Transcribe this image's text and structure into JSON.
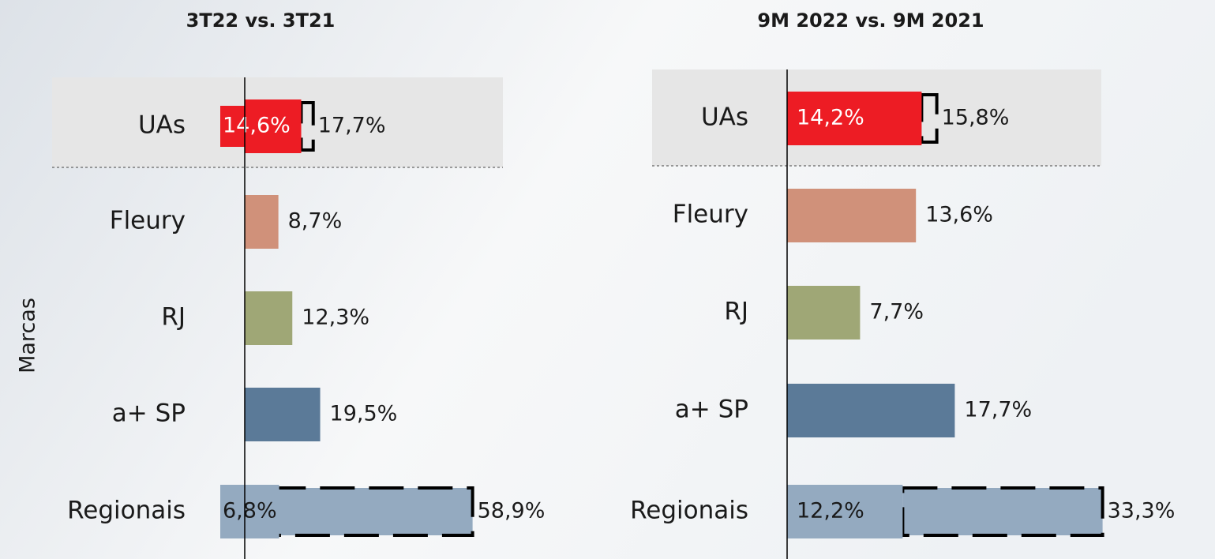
{
  "chart_data": [
    {
      "type": "bar",
      "title": "3T22 vs. 3T21",
      "ylabel": "Marcas",
      "categories": [
        "UAs",
        "Fleury",
        "RJ",
        "a+ SP",
        "Regionais"
      ],
      "colors": [
        "#ed1c24",
        "#d0917a",
        "#9fa776",
        "#5b7a98",
        "#94aac0"
      ],
      "values": [
        14.6,
        8.7,
        12.3,
        19.5,
        6.8
      ],
      "value_labels": [
        "14,6%",
        "8,7%",
        "12,3%",
        "19,5%",
        "6,8%"
      ],
      "comparison": {
        "values": [
          17.7,
          null,
          null,
          null,
          58.9
        ],
        "value_labels": [
          "17,7%",
          null,
          null,
          null,
          "58,9%"
        ]
      },
      "xlim": [
        0,
        60
      ]
    },
    {
      "type": "bar",
      "title": "9M 2022 vs. 9M 2021",
      "categories": [
        "UAs",
        "Fleury",
        "RJ",
        "a+ SP",
        "Regionais"
      ],
      "colors": [
        "#ed1c24",
        "#d0917a",
        "#9fa776",
        "#5b7a98",
        "#94aac0"
      ],
      "values": [
        14.2,
        13.6,
        7.7,
        17.7,
        12.2
      ],
      "value_labels": [
        "14,2%",
        "13,6%",
        "7,7%",
        "17,7%",
        "12,2%"
      ],
      "comparison": {
        "values": [
          15.8,
          null,
          null,
          null,
          33.3
        ],
        "value_labels": [
          "15,8%",
          null,
          null,
          null,
          "33,3%"
        ]
      },
      "xlim": [
        0,
        35
      ]
    }
  ]
}
